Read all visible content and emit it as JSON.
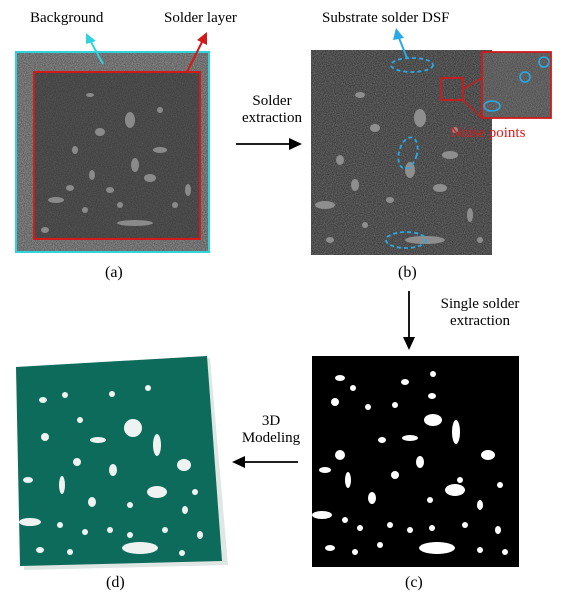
{
  "labels": {
    "background": "Background",
    "solder_layer": "Solder layer",
    "substrate_solder_dsf": "Substrate solder DSF",
    "solder_extraction": [
      "Solder",
      "extraction"
    ],
    "noise_points": "Noise points",
    "single_solder_extraction": [
      "Single solder",
      "extraction"
    ],
    "modeling_3d": [
      "3D",
      "Modeling"
    ]
  },
  "captions": {
    "a": "(a)",
    "b": "(b)",
    "c": "(c)",
    "d": "(d)"
  },
  "colors": {
    "background_outline": "#2fd3df",
    "solder_outline": "#d11a1a",
    "dsf_ellipse": "#2aa9e6",
    "noise_text": "#e01818",
    "model_green": "#0d6b5b",
    "solder_white": "#ffffff",
    "mask_black": "#000000"
  }
}
